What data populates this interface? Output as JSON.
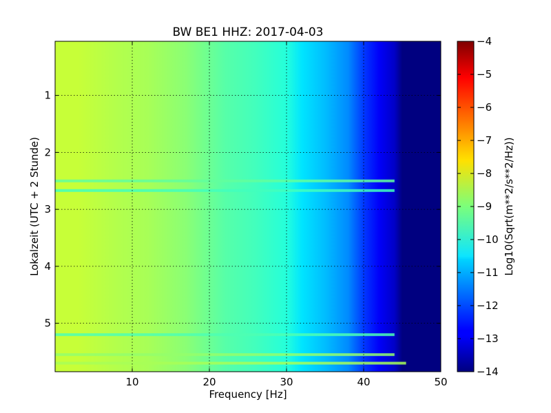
{
  "chart_data": {
    "type": "heatmap",
    "title": "BW BE1 HHZ: 2017-04-03",
    "xlabel": "Frequency [Hz]",
    "ylabel": "Lokalzeit (UTC + 2 Stunde)",
    "xlim": [
      0,
      50
    ],
    "ylim": [
      5.85,
      0.05
    ],
    "x_ticks": [
      10,
      20,
      30,
      40,
      50
    ],
    "y_ticks": [
      1,
      2,
      3,
      4,
      5
    ],
    "grid": true,
    "colormap": "jet",
    "colorbar": {
      "label": "Log10(Sqrt(m**2/s**2/Hz))",
      "range": [
        -14,
        -4
      ],
      "ticks": [
        -14,
        -13,
        -12,
        -11,
        -10,
        -9,
        -8,
        -7,
        -6,
        -5,
        -4
      ]
    },
    "frequency_profile": [
      {
        "f": 0,
        "v": -8.3
      },
      {
        "f": 3,
        "v": -8.3
      },
      {
        "f": 8,
        "v": -8.5
      },
      {
        "f": 12,
        "v": -8.6
      },
      {
        "f": 17,
        "v": -8.9
      },
      {
        "f": 22,
        "v": -9.4
      },
      {
        "f": 26,
        "v": -9.6
      },
      {
        "f": 30,
        "v": -9.9
      },
      {
        "f": 32,
        "v": -10.5
      },
      {
        "f": 35,
        "v": -10.9
      },
      {
        "f": 38,
        "v": -11.4
      },
      {
        "f": 40,
        "v": -12.2
      },
      {
        "f": 42,
        "v": -12.8
      },
      {
        "f": 44,
        "v": -13.3
      },
      {
        "f": 45,
        "v": -14.0
      },
      {
        "f": 50,
        "v": -14.0
      }
    ],
    "horizontal_bands": [
      {
        "time": 2.5,
        "v": -9.3,
        "f_end": 44
      },
      {
        "time": 2.67,
        "v": -9.6,
        "f_end": 44
      },
      {
        "time": 5.2,
        "v": -9.5,
        "f_end": 44
      },
      {
        "time": 5.55,
        "v": -8.8,
        "f_end": 44
      },
      {
        "time": 5.7,
        "v": -8.6,
        "f_end": 45.5
      }
    ]
  }
}
